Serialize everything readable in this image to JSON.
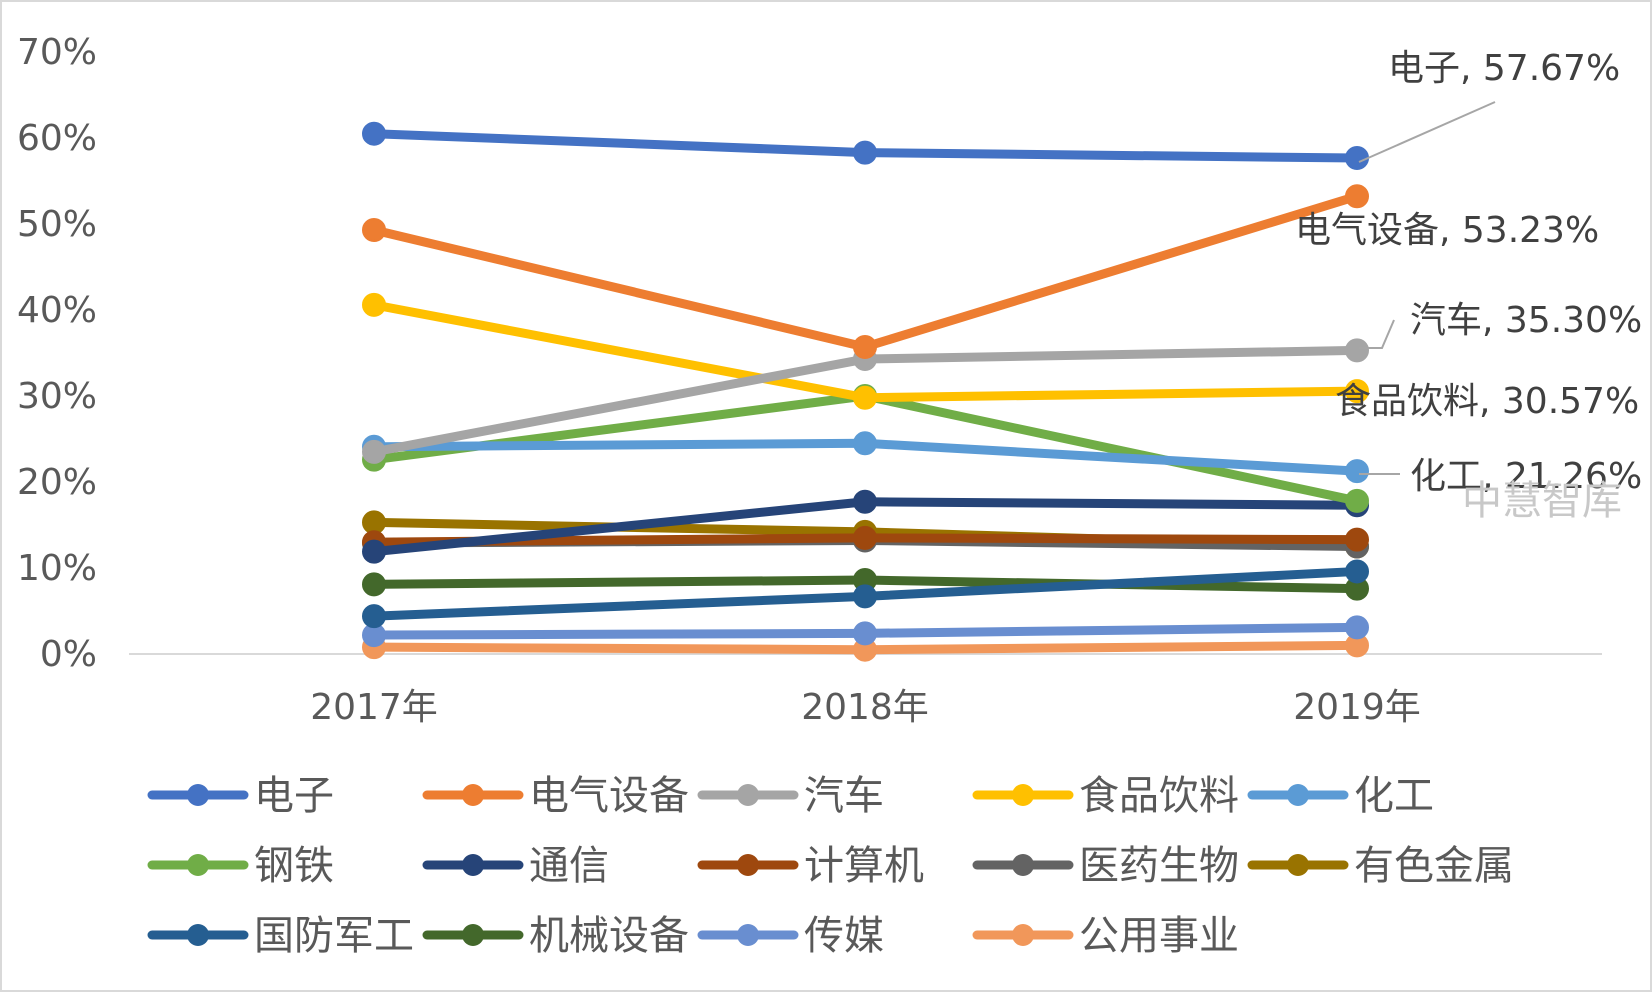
{
  "chart_data": {
    "type": "line",
    "title": "",
    "xlabel": "",
    "ylabel": "",
    "categories": [
      "2017年",
      "2018年",
      "2019年"
    ],
    "y_ticks": [
      "0%",
      "10%",
      "20%",
      "30%",
      "40%",
      "50%",
      "60%",
      "70%"
    ],
    "ylim": [
      0,
      70
    ],
    "grid": false,
    "legend_position": "bottom",
    "series": [
      {
        "name": "电子",
        "color": "#4472C4",
        "values": [
          60.5,
          58.3,
          57.67
        ]
      },
      {
        "name": "电气设备",
        "color": "#ED7D31",
        "values": [
          49.3,
          35.7,
          53.23
        ]
      },
      {
        "name": "汽车",
        "color": "#A5A5A5",
        "values": [
          23.5,
          34.3,
          35.3
        ]
      },
      {
        "name": "食品饮料",
        "color": "#FFC000",
        "values": [
          40.6,
          29.8,
          30.57
        ]
      },
      {
        "name": "化工",
        "color": "#5B9BD5",
        "values": [
          24.1,
          24.5,
          21.26
        ]
      },
      {
        "name": "钢铁",
        "color": "#70AD47",
        "values": [
          22.6,
          30.0,
          17.8
        ]
      },
      {
        "name": "通信",
        "color": "#264478",
        "values": [
          11.9,
          17.7,
          17.3
        ]
      },
      {
        "name": "计算机",
        "color": "#9E480E",
        "values": [
          13.0,
          13.5,
          13.3
        ]
      },
      {
        "name": "医药生物",
        "color": "#636363",
        "values": [
          12.9,
          13.2,
          12.5
        ]
      },
      {
        "name": "有色金属",
        "color": "#997300",
        "values": [
          15.3,
          14.2,
          12.5
        ]
      },
      {
        "name": "国防军工",
        "color": "#255E91",
        "values": [
          4.4,
          6.7,
          9.6
        ]
      },
      {
        "name": "机械设备",
        "color": "#43682B",
        "values": [
          8.1,
          8.6,
          7.6
        ]
      },
      {
        "name": "传媒",
        "color": "#698ED0",
        "values": [
          2.2,
          2.4,
          3.1
        ]
      },
      {
        "name": "公用事业",
        "color": "#F1975A",
        "values": [
          0.8,
          0.5,
          1.0
        ]
      }
    ],
    "data_labels": [
      {
        "series": "电子",
        "text": "电子, 57.67%"
      },
      {
        "series": "电气设备",
        "text": "电气设备, 53.23%"
      },
      {
        "series": "汽车",
        "text": "汽车, 35.30%"
      },
      {
        "series": "食品饮料",
        "text": "食品饮料, 30.57%"
      },
      {
        "series": "化工",
        "text": "化工, 21.26%"
      }
    ],
    "watermark": "中慧智库"
  }
}
